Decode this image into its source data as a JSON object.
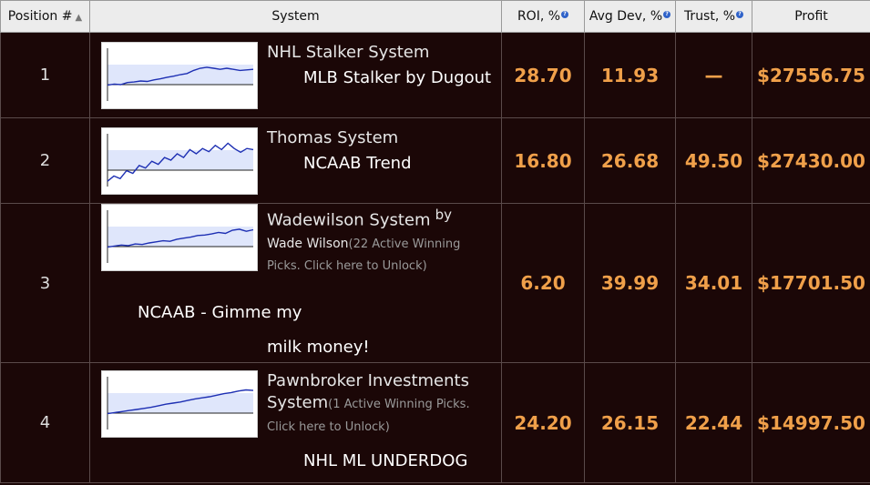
{
  "columns": {
    "position": "Position #",
    "system": "System",
    "roi": "ROI, %",
    "avg_dev": "Avg Dev, %",
    "trust": "Trust, %",
    "profit": "Profit"
  },
  "icons": {
    "sort": "sort-up-icon",
    "info": "info-icon",
    "info_glyph": "?"
  },
  "colors": {
    "value": "#f0a04a",
    "header_bg": "#ececec",
    "row_bg": "#1b0707",
    "chart_line": "#1d2fb3",
    "chart_band": "#dfe6fb"
  },
  "rows": [
    {
      "position": "1",
      "name": "NHL Stalker System",
      "subtitle": "MLB Stalker by Dugout",
      "roi": "28.70",
      "avg_dev": "11.93",
      "trust": "—",
      "profit": "$27556.75",
      "chart": [
        0.3,
        0.32,
        0.31,
        0.35,
        0.36,
        0.38,
        0.37,
        0.4,
        0.42,
        0.45,
        0.47,
        0.5,
        0.52,
        0.58,
        0.62,
        0.64,
        0.62,
        0.6,
        0.62,
        0.6,
        0.58,
        0.59,
        0.6
      ]
    },
    {
      "position": "2",
      "name": "Thomas System",
      "subtitle": "NCAAB Trend",
      "roi": "16.80",
      "avg_dev": "26.68",
      "trust": "49.50",
      "profit": "$27430.00",
      "chart": [
        0.1,
        0.2,
        0.15,
        0.3,
        0.25,
        0.4,
        0.35,
        0.48,
        0.42,
        0.55,
        0.5,
        0.62,
        0.55,
        0.7,
        0.62,
        0.72,
        0.66,
        0.78,
        0.7,
        0.82,
        0.72,
        0.65,
        0.72,
        0.7
      ]
    },
    {
      "position": "3",
      "name": "Wadewilson System",
      "by": "by",
      "author": "Wade Wilson",
      "note": "(22 Active Winning Picks. Click here to Unlock)",
      "subtitle_a": "NCAAB - Gimme my",
      "subtitle_b": "milk money!",
      "roi": "6.20",
      "avg_dev": "39.99",
      "trust": "34.01",
      "profit": "$17701.50",
      "chart": [
        0.3,
        0.32,
        0.34,
        0.33,
        0.36,
        0.35,
        0.38,
        0.4,
        0.42,
        0.41,
        0.45,
        0.47,
        0.49,
        0.52,
        0.53,
        0.55,
        0.58,
        0.56,
        0.62,
        0.64,
        0.6,
        0.63
      ]
    },
    {
      "position": "4",
      "name_a": "Pawnbroker Investments",
      "name_b": "System",
      "note_a": "(1 Active Winning Picks.",
      "note_b": "Click here to Unlock)",
      "subtitle": "NHL ML UNDERDOG",
      "roi": "24.20",
      "avg_dev": "26.15",
      "trust": "22.44",
      "profit": "$14997.50",
      "chart": [
        0.3,
        0.32,
        0.34,
        0.36,
        0.38,
        0.4,
        0.42,
        0.45,
        0.48,
        0.5,
        0.52,
        0.55,
        0.58,
        0.6,
        0.62,
        0.65,
        0.68,
        0.7,
        0.73,
        0.75,
        0.74
      ]
    }
  ]
}
